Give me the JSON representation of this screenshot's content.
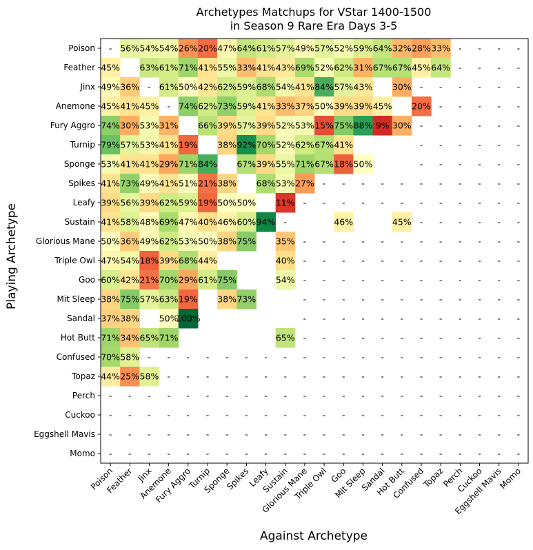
{
  "chart_data": {
    "type": "heatmap",
    "title_line1": "Archetypes Matchups for VStar 1400-1500",
    "title_line2": "in Season 9 Rare Era Days 3-5",
    "xlabel": "Against Archetype",
    "ylabel": "Playing Archetype",
    "rows": [
      "Poison",
      "Feather",
      "Jinx",
      "Anemone",
      "Fury Aggro",
      "Turnip",
      "Sponge",
      "Spikes",
      "Leafy",
      "Sustain",
      "Glorious Mane",
      "Triple Owl",
      "Goo",
      "Mit Sleep",
      "Sandal",
      "Hot Butt",
      "Confused",
      "Topaz",
      "Perch",
      "Cuckoo",
      "Eggshell Mavis",
      "Momo"
    ],
    "columns": [
      "Poison",
      "Feather",
      "Jinx",
      "Anemone",
      "Fury Aggro",
      "Turnip",
      "Sponge",
      "Spikes",
      "Leafy",
      "Sustain",
      "Glorious Mane",
      "Triple Owl",
      "Goo",
      "Mit Sleep",
      "Sandal",
      "Hot Butt",
      "Confused",
      "Topaz",
      "Perch",
      "Cuckoo",
      "Eggshell Mavis",
      "Momo"
    ],
    "colormap": "RdYlGn",
    "value_range": [
      0,
      100
    ],
    "missing_marker": "-",
    "values": [
      [
        null,
        56,
        54,
        54,
        26,
        20,
        47,
        64,
        61,
        57,
        49,
        57,
        52,
        59,
        64,
        32,
        28,
        33,
        null,
        null,
        null,
        null
      ],
      [
        45,
        null,
        63,
        61,
        71,
        41,
        55,
        33,
        41,
        43,
        69,
        52,
        62,
        31,
        67,
        67,
        45,
        64,
        null,
        null,
        null,
        null
      ],
      [
        49,
        36,
        null,
        61,
        50,
        42,
        62,
        59,
        68,
        54,
        41,
        84,
        57,
        43,
        null,
        30,
        null,
        null,
        null,
        null,
        null,
        null
      ],
      [
        45,
        41,
        45,
        null,
        74,
        62,
        73,
        59,
        41,
        33,
        37,
        50,
        39,
        39,
        45,
        null,
        20,
        null,
        null,
        null,
        null,
        null
      ],
      [
        74,
        30,
        53,
        31,
        null,
        66,
        39,
        57,
        39,
        52,
        53,
        15,
        75,
        88,
        9,
        30,
        null,
        null,
        null,
        null,
        null,
        null
      ],
      [
        79,
        57,
        53,
        41,
        19,
        null,
        38,
        92,
        70,
        52,
        62,
        67,
        41,
        null,
        null,
        null,
        null,
        null,
        null,
        null,
        null,
        null
      ],
      [
        53,
        41,
        41,
        29,
        71,
        84,
        null,
        67,
        39,
        55,
        71,
        67,
        18,
        50,
        null,
        null,
        null,
        null,
        null,
        null,
        null,
        null
      ],
      [
        41,
        73,
        49,
        41,
        51,
        21,
        38,
        null,
        68,
        53,
        27,
        null,
        null,
        null,
        null,
        null,
        null,
        null,
        null,
        null,
        null,
        null
      ],
      [
        39,
        56,
        39,
        62,
        59,
        19,
        50,
        50,
        null,
        11,
        null,
        null,
        null,
        null,
        null,
        null,
        null,
        null,
        null,
        null,
        null,
        null
      ],
      [
        41,
        58,
        48,
        69,
        47,
        40,
        46,
        60,
        94,
        null,
        null,
        null,
        46,
        null,
        null,
        45,
        null,
        null,
        null,
        null,
        null,
        null
      ],
      [
        50,
        36,
        49,
        62,
        53,
        50,
        38,
        75,
        null,
        35,
        null,
        null,
        null,
        null,
        null,
        null,
        null,
        null,
        null,
        null,
        null,
        null
      ],
      [
        47,
        54,
        18,
        39,
        68,
        44,
        null,
        null,
        null,
        40,
        null,
        null,
        null,
        null,
        null,
        null,
        null,
        null,
        null,
        null,
        null,
        null
      ],
      [
        60,
        42,
        21,
        70,
        29,
        61,
        75,
        null,
        null,
        54,
        null,
        null,
        null,
        null,
        null,
        null,
        null,
        null,
        null,
        null,
        null,
        null
      ],
      [
        38,
        75,
        57,
        63,
        19,
        null,
        38,
        73,
        null,
        null,
        null,
        null,
        null,
        null,
        null,
        null,
        null,
        null,
        null,
        null,
        null,
        null
      ],
      [
        37,
        38,
        null,
        50,
        100,
        null,
        null,
        null,
        null,
        null,
        null,
        null,
        null,
        null,
        null,
        null,
        null,
        null,
        null,
        null,
        null,
        null
      ],
      [
        71,
        34,
        65,
        71,
        null,
        null,
        null,
        null,
        null,
        65,
        null,
        null,
        null,
        null,
        null,
        null,
        null,
        null,
        null,
        null,
        null,
        null
      ],
      [
        70,
        58,
        null,
        null,
        null,
        null,
        null,
        null,
        null,
        null,
        null,
        null,
        null,
        null,
        null,
        null,
        null,
        null,
        null,
        null,
        null,
        null
      ],
      [
        44,
        25,
        58,
        null,
        null,
        null,
        null,
        null,
        null,
        null,
        null,
        null,
        null,
        null,
        null,
        null,
        null,
        null,
        null,
        null,
        null,
        null
      ],
      [
        null,
        null,
        null,
        null,
        null,
        null,
        null,
        null,
        null,
        null,
        null,
        null,
        null,
        null,
        null,
        null,
        null,
        null,
        null,
        null,
        null,
        null
      ],
      [
        null,
        null,
        null,
        null,
        null,
        null,
        null,
        null,
        null,
        null,
        null,
        null,
        null,
        null,
        null,
        null,
        null,
        null,
        null,
        null,
        null,
        null
      ],
      [
        null,
        null,
        null,
        null,
        null,
        null,
        null,
        null,
        null,
        null,
        null,
        null,
        null,
        null,
        null,
        null,
        null,
        null,
        null,
        null,
        null,
        null
      ],
      [
        null,
        null,
        null,
        null,
        null,
        null,
        null,
        null,
        null,
        null,
        null,
        null,
        null,
        null,
        null,
        null,
        null,
        null,
        null,
        null,
        null,
        null
      ]
    ],
    "blank_cells": [
      [
        1,
        1
      ],
      [
        4,
        4
      ],
      [
        5,
        5
      ],
      [
        6,
        6
      ],
      [
        7,
        7
      ],
      [
        8,
        8
      ],
      [
        2,
        14
      ],
      [
        3,
        15
      ],
      [
        5,
        13
      ],
      [
        5,
        14
      ],
      [
        5,
        15
      ],
      [
        6,
        14
      ],
      [
        6,
        15
      ],
      [
        9,
        10
      ],
      [
        9,
        11
      ],
      [
        9,
        13
      ],
      [
        9,
        14
      ],
      [
        10,
        8
      ],
      [
        11,
        6
      ],
      [
        11,
        7
      ],
      [
        11,
        8
      ],
      [
        12,
        7
      ],
      [
        12,
        8
      ],
      [
        13,
        5
      ],
      [
        13,
        8
      ],
      [
        13,
        9
      ],
      [
        14,
        2
      ],
      [
        14,
        5
      ],
      [
        14,
        6
      ],
      [
        14,
        7
      ],
      [
        14,
        8
      ],
      [
        14,
        9
      ],
      [
        15,
        4
      ],
      [
        15,
        5
      ],
      [
        15,
        6
      ],
      [
        15,
        7
      ],
      [
        15,
        8
      ]
    ]
  }
}
